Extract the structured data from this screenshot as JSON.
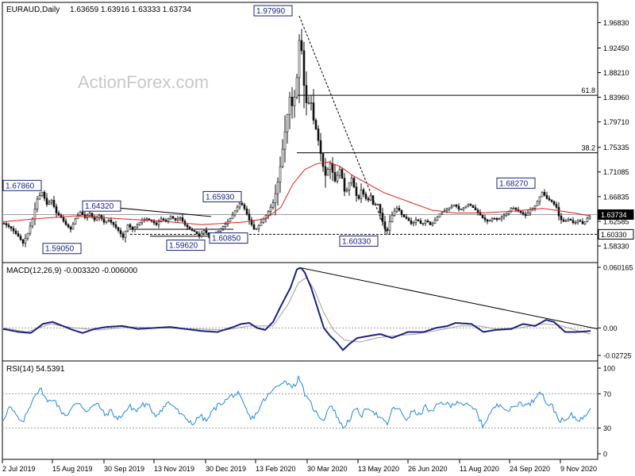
{
  "chart_data": {
    "type": "candlestick",
    "symbol": "EURAUD,Daily",
    "ohlc": "1.63659 1.63916 1.63333 1.63734",
    "watermark": "ActionForex.com",
    "colors": {
      "candle": "#111111",
      "sma": "#e02020",
      "macd": "#1a237e",
      "signal": "#a0a0a0",
      "rsi": "#1e88e5",
      "label_border": "#1a237e"
    },
    "price_axis": {
      "ticks": [
        "1.96830",
        "1.92450",
        "1.88210",
        "1.83960",
        "1.79710",
        "1.75335",
        "1.71085",
        "1.66835",
        "1.62585",
        "1.58330"
      ],
      "current": "1.63734",
      "support": "1.60330"
    },
    "x_axis": [
      "2 Jul 2019",
      "15 Aug 2019",
      "30 Sep 2019",
      "13 Nov 2019",
      "30 Dec 2019",
      "13 Feb 2020",
      "30 Mar 2020",
      "13 May 2020",
      "26 Jun 2020",
      "11 Aug 2020",
      "24 Sep 2020",
      "9 Nov 2020"
    ],
    "price_anchors": [
      [
        0,
        1.622
      ],
      [
        8,
        1.615
      ],
      [
        18,
        1.6
      ],
      [
        24,
        1.588
      ],
      [
        30,
        1.605
      ],
      [
        36,
        1.63
      ],
      [
        42,
        1.664
      ],
      [
        48,
        1.676
      ],
      [
        54,
        1.655
      ],
      [
        60,
        1.662
      ],
      [
        66,
        1.64
      ],
      [
        72,
        1.632
      ],
      [
        78,
        1.62
      ],
      [
        84,
        1.612
      ],
      [
        90,
        1.63
      ],
      [
        96,
        1.642
      ],
      [
        102,
        1.632
      ],
      [
        108,
        1.64
      ],
      [
        114,
        1.628
      ],
      [
        120,
        1.636
      ],
      [
        126,
        1.624
      ],
      [
        132,
        1.628
      ],
      [
        138,
        1.62
      ],
      [
        144,
        1.61
      ],
      [
        150,
        1.598
      ],
      [
        156,
        1.62
      ],
      [
        162,
        1.612
      ],
      [
        168,
        1.62
      ],
      [
        174,
        1.628
      ],
      [
        180,
        1.63
      ],
      [
        186,
        1.626
      ],
      [
        192,
        1.62
      ],
      [
        198,
        1.63
      ],
      [
        204,
        1.626
      ],
      [
        210,
        1.634
      ],
      [
        216,
        1.628
      ],
      [
        222,
        1.632
      ],
      [
        228,
        1.62
      ],
      [
        234,
        1.612
      ],
      [
        240,
        1.608
      ],
      [
        246,
        1.6
      ],
      [
        252,
        1.61
      ],
      [
        258,
        1.602
      ],
      [
        262,
        1.598
      ],
      [
        268,
        1.606
      ],
      [
        274,
        1.614
      ],
      [
        280,
        1.622
      ],
      [
        286,
        1.632
      ],
      [
        292,
        1.646
      ],
      [
        298,
        1.659
      ],
      [
        304,
        1.645
      ],
      [
        310,
        1.625
      ],
      [
        316,
        1.61
      ],
      [
        322,
        1.62
      ],
      [
        328,
        1.632
      ],
      [
        334,
        1.645
      ],
      [
        340,
        1.66
      ],
      [
        346,
        1.7
      ],
      [
        352,
        1.76
      ],
      [
        356,
        1.8
      ],
      [
        360,
        1.84
      ],
      [
        364,
        1.82
      ],
      [
        368,
        1.86
      ],
      [
        371,
        1.9
      ],
      [
        373,
        1.975
      ],
      [
        375,
        1.92
      ],
      [
        378,
        1.86
      ],
      [
        382,
        1.82
      ],
      [
        386,
        1.84
      ],
      [
        390,
        1.8
      ],
      [
        394,
        1.78
      ],
      [
        398,
        1.75
      ],
      [
        402,
        1.72
      ],
      [
        406,
        1.7
      ],
      [
        410,
        1.73
      ],
      [
        414,
        1.71
      ],
      [
        418,
        1.69
      ],
      [
        422,
        1.72
      ],
      [
        426,
        1.7
      ],
      [
        430,
        1.67
      ],
      [
        434,
        1.69
      ],
      [
        438,
        1.7
      ],
      [
        442,
        1.68
      ],
      [
        446,
        1.66
      ],
      [
        450,
        1.68
      ],
      [
        454,
        1.67
      ],
      [
        458,
        1.66
      ],
      [
        462,
        1.67
      ],
      [
        466,
        1.65
      ],
      [
        470,
        1.66
      ],
      [
        474,
        1.64
      ],
      [
        478,
        1.62
      ],
      [
        482,
        1.605
      ],
      [
        486,
        1.625
      ],
      [
        490,
        1.64
      ],
      [
        496,
        1.65
      ],
      [
        502,
        1.635
      ],
      [
        508,
        1.63
      ],
      [
        514,
        1.62
      ],
      [
        520,
        1.63
      ],
      [
        526,
        1.62
      ],
      [
        532,
        1.628
      ],
      [
        538,
        1.618
      ],
      [
        544,
        1.63
      ],
      [
        550,
        1.64
      ],
      [
        556,
        1.645
      ],
      [
        562,
        1.65
      ],
      [
        568,
        1.655
      ],
      [
        574,
        1.645
      ],
      [
        580,
        1.65
      ],
      [
        586,
        1.656
      ],
      [
        592,
        1.648
      ],
      [
        598,
        1.64
      ],
      [
        604,
        1.63
      ],
      [
        610,
        1.625
      ],
      [
        616,
        1.632
      ],
      [
        622,
        1.628
      ],
      [
        628,
        1.634
      ],
      [
        634,
        1.64
      ],
      [
        640,
        1.65
      ],
      [
        646,
        1.645
      ],
      [
        652,
        1.64
      ],
      [
        658,
        1.635
      ],
      [
        662,
        1.645
      ],
      [
        668,
        1.65
      ],
      [
        672,
        1.66
      ],
      [
        678,
        1.676
      ],
      [
        684,
        1.665
      ],
      [
        690,
        1.66
      ],
      [
        696,
        1.65
      ],
      [
        700,
        1.63
      ],
      [
        706,
        1.625
      ],
      [
        712,
        1.63
      ],
      [
        718,
        1.622
      ],
      [
        724,
        1.628
      ],
      [
        730,
        1.62
      ],
      [
        734,
        1.63
      ],
      [
        740,
        1.637
      ]
    ],
    "sma_anchors": [
      [
        0,
        1.625
      ],
      [
        40,
        1.63
      ],
      [
        90,
        1.635
      ],
      [
        150,
        1.63
      ],
      [
        200,
        1.626
      ],
      [
        250,
        1.62
      ],
      [
        300,
        1.624
      ],
      [
        330,
        1.63
      ],
      [
        350,
        1.65
      ],
      [
        365,
        1.69
      ],
      [
        380,
        1.715
      ],
      [
        395,
        1.725
      ],
      [
        410,
        1.728
      ],
      [
        425,
        1.72
      ],
      [
        440,
        1.705
      ],
      [
        460,
        1.69
      ],
      [
        480,
        1.675
      ],
      [
        510,
        1.66
      ],
      [
        540,
        1.645
      ],
      [
        570,
        1.64
      ],
      [
        600,
        1.64
      ],
      [
        640,
        1.643
      ],
      [
        680,
        1.648
      ],
      [
        720,
        1.64
      ],
      [
        740,
        1.635
      ]
    ],
    "annotations": [
      {
        "label": "1.67860",
        "x": 4,
        "price": 1.6786,
        "below": false
      },
      {
        "label": "1.59050",
        "x": 54,
        "price": 1.5905,
        "below": true
      },
      {
        "label": "1.64320",
        "x": 104,
        "price": 1.6432,
        "below": false
      },
      {
        "label": "1.59620",
        "x": 210,
        "price": 1.5962,
        "below": true
      },
      {
        "label": "1.60850",
        "x": 264,
        "price": 1.6085,
        "below": true
      },
      {
        "label": "1.65930",
        "x": 256,
        "price": 1.6593,
        "below": false
      },
      {
        "label": "1.97990",
        "x": 320,
        "price": 1.9799,
        "below": false
      },
      {
        "label": "1.60330",
        "x": 428,
        "price": 1.6033,
        "below": true
      },
      {
        "label": "1.68270",
        "x": 626,
        "price": 1.6827,
        "below": false
      }
    ],
    "fib_levels": [
      {
        "label": "61.8",
        "price": 1.843
      },
      {
        "label": "38.2",
        "price": 1.7439
      }
    ],
    "macd": {
      "label": "MACD(12,26,9) -0.003320 -0.006000",
      "ticks": [
        "0.060165",
        "0.00",
        "-0.02725"
      ],
      "line_anchors": [
        [
          0,
          -0.001
        ],
        [
          20,
          -0.004
        ],
        [
          35,
          -0.005
        ],
        [
          50,
          0.004
        ],
        [
          62,
          0.006
        ],
        [
          75,
          0.002
        ],
        [
          88,
          -0.002
        ],
        [
          100,
          -0.005
        ],
        [
          115,
          -0.001
        ],
        [
          130,
          0.001
        ],
        [
          150,
          0.002
        ],
        [
          170,
          -0.001
        ],
        [
          190,
          0.0
        ],
        [
          210,
          0.001
        ],
        [
          230,
          -0.001
        ],
        [
          250,
          -0.003
        ],
        [
          270,
          -0.004
        ],
        [
          290,
          0.001
        ],
        [
          300,
          0.004
        ],
        [
          310,
          0.005
        ],
        [
          320,
          0.0
        ],
        [
          330,
          -0.002
        ],
        [
          340,
          0.006
        ],
        [
          350,
          0.022
        ],
        [
          362,
          0.04
        ],
        [
          370,
          0.058
        ],
        [
          375,
          0.06
        ],
        [
          380,
          0.055
        ],
        [
          388,
          0.04
        ],
        [
          396,
          0.02
        ],
        [
          404,
          0.0
        ],
        [
          412,
          -0.008
        ],
        [
          420,
          -0.014
        ],
        [
          428,
          -0.022
        ],
        [
          436,
          -0.016
        ],
        [
          446,
          -0.01
        ],
        [
          460,
          -0.008
        ],
        [
          475,
          -0.006
        ],
        [
          490,
          -0.01
        ],
        [
          510,
          -0.004
        ],
        [
          530,
          -0.004
        ],
        [
          545,
          0.0
        ],
        [
          560,
          0.002
        ],
        [
          570,
          0.005
        ],
        [
          590,
          0.004
        ],
        [
          605,
          -0.004
        ],
        [
          620,
          -0.002
        ],
        [
          640,
          -0.001
        ],
        [
          655,
          0.004
        ],
        [
          670,
          0.002
        ],
        [
          684,
          0.008
        ],
        [
          694,
          0.006
        ],
        [
          708,
          -0.004
        ],
        [
          722,
          -0.004
        ],
        [
          740,
          -0.003
        ]
      ],
      "signal_anchors": [
        [
          0,
          0.0
        ],
        [
          30,
          -0.004
        ],
        [
          60,
          0.004
        ],
        [
          90,
          0.0
        ],
        [
          120,
          -0.002
        ],
        [
          160,
          0.001
        ],
        [
          200,
          0.0
        ],
        [
          240,
          -0.001
        ],
        [
          280,
          -0.002
        ],
        [
          310,
          0.002
        ],
        [
          340,
          0.002
        ],
        [
          360,
          0.025
        ],
        [
          372,
          0.045
        ],
        [
          382,
          0.05
        ],
        [
          392,
          0.038
        ],
        [
          404,
          0.015
        ],
        [
          416,
          -0.002
        ],
        [
          430,
          -0.012
        ],
        [
          450,
          -0.014
        ],
        [
          470,
          -0.01
        ],
        [
          490,
          -0.008
        ],
        [
          520,
          -0.006
        ],
        [
          550,
          -0.002
        ],
        [
          575,
          0.002
        ],
        [
          600,
          0.002
        ],
        [
          620,
          -0.001
        ],
        [
          650,
          0.0
        ],
        [
          680,
          0.004
        ],
        [
          700,
          0.003
        ],
        [
          720,
          -0.002
        ],
        [
          740,
          -0.006
        ]
      ]
    },
    "rsi": {
      "label": "RSI(14) 54.5391",
      "ticks": [
        "100",
        "70",
        "30",
        "0"
      ],
      "anchors": [
        [
          0,
          40
        ],
        [
          8,
          55
        ],
        [
          16,
          45
        ],
        [
          24,
          35
        ],
        [
          32,
          52
        ],
        [
          40,
          70
        ],
        [
          48,
          75
        ],
        [
          56,
          60
        ],
        [
          64,
          65
        ],
        [
          72,
          50
        ],
        [
          80,
          45
        ],
        [
          88,
          55
        ],
        [
          96,
          60
        ],
        [
          104,
          50
        ],
        [
          112,
          55
        ],
        [
          120,
          58
        ],
        [
          128,
          45
        ],
        [
          136,
          50
        ],
        [
          144,
          40
        ],
        [
          152,
          48
        ],
        [
          160,
          55
        ],
        [
          168,
          50
        ],
        [
          176,
          58
        ],
        [
          184,
          55
        ],
        [
          192,
          45
        ],
        [
          200,
          52
        ],
        [
          208,
          60
        ],
        [
          216,
          55
        ],
        [
          224,
          45
        ],
        [
          232,
          40
        ],
        [
          240,
          35
        ],
        [
          248,
          45
        ],
        [
          256,
          38
        ],
        [
          264,
          50
        ],
        [
          272,
          58
        ],
        [
          280,
          62
        ],
        [
          288,
          68
        ],
        [
          296,
          70
        ],
        [
          304,
          55
        ],
        [
          312,
          40
        ],
        [
          320,
          48
        ],
        [
          328,
          62
        ],
        [
          336,
          70
        ],
        [
          344,
          78
        ],
        [
          352,
          85
        ],
        [
          360,
          82
        ],
        [
          368,
          78
        ],
        [
          372,
          92
        ],
        [
          376,
          80
        ],
        [
          382,
          65
        ],
        [
          388,
          58
        ],
        [
          396,
          45
        ],
        [
          404,
          40
        ],
        [
          412,
          58
        ],
        [
          420,
          45
        ],
        [
          428,
          30
        ],
        [
          436,
          40
        ],
        [
          444,
          52
        ],
        [
          452,
          45
        ],
        [
          460,
          55
        ],
        [
          468,
          48
        ],
        [
          476,
          40
        ],
        [
          484,
          35
        ],
        [
          492,
          55
        ],
        [
          500,
          50
        ],
        [
          508,
          40
        ],
        [
          516,
          50
        ],
        [
          524,
          45
        ],
        [
          532,
          55
        ],
        [
          540,
          48
        ],
        [
          548,
          58
        ],
        [
          556,
          60
        ],
        [
          564,
          55
        ],
        [
          572,
          62
        ],
        [
          580,
          58
        ],
        [
          588,
          55
        ],
        [
          596,
          50
        ],
        [
          604,
          32
        ],
        [
          612,
          45
        ],
        [
          620,
          55
        ],
        [
          628,
          58
        ],
        [
          636,
          50
        ],
        [
          644,
          55
        ],
        [
          652,
          60
        ],
        [
          660,
          56
        ],
        [
          668,
          62
        ],
        [
          676,
          75
        ],
        [
          684,
          60
        ],
        [
          692,
          55
        ],
        [
          700,
          40
        ],
        [
          708,
          38
        ],
        [
          716,
          45
        ],
        [
          724,
          40
        ],
        [
          732,
          42
        ],
        [
          740,
          55
        ]
      ]
    }
  }
}
